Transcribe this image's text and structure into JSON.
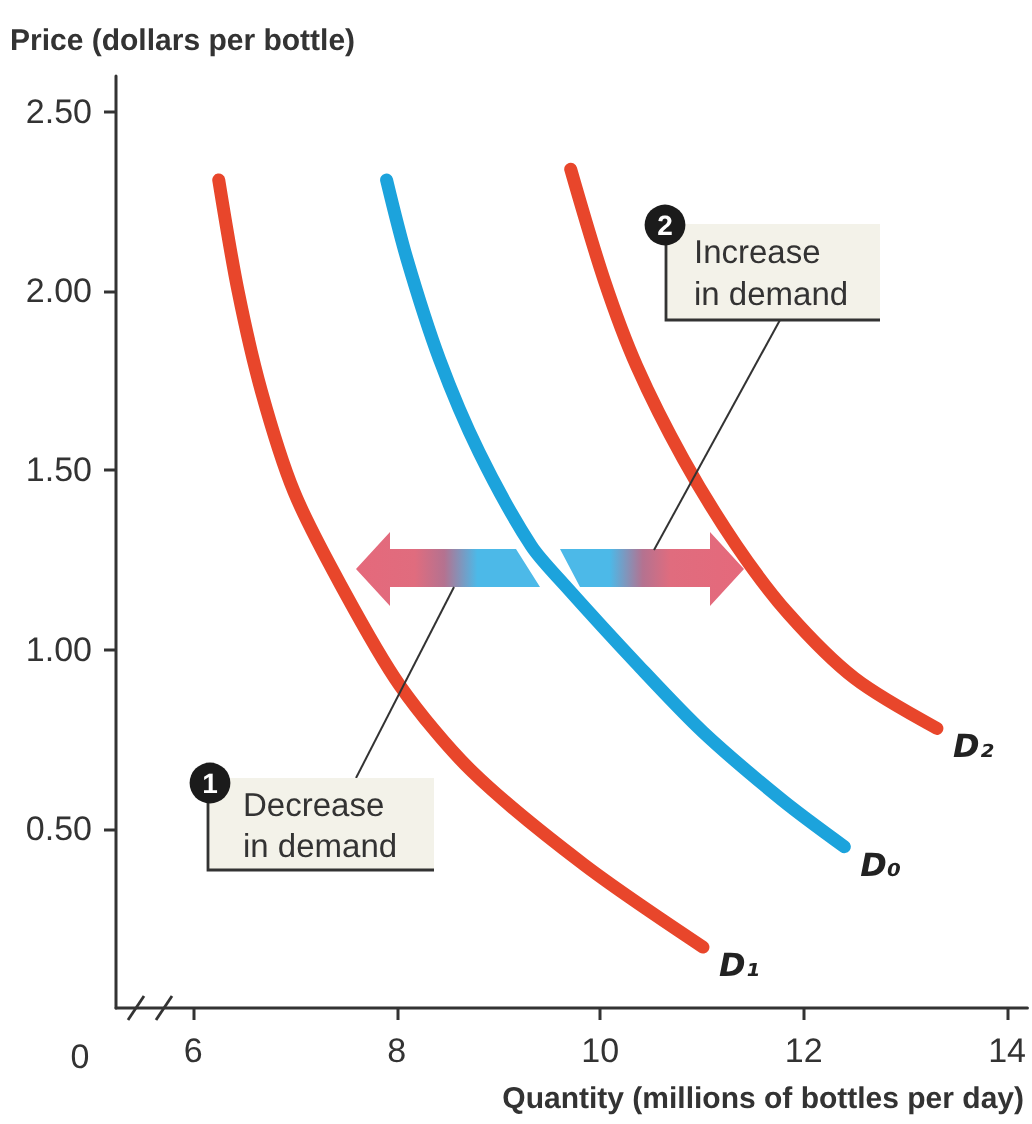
{
  "chart_data": {
    "type": "line",
    "xlabel": "Quantity (millions of bottles per day)",
    "ylabel": "Price (dollars per bottle)",
    "xlim": [
      5.24,
      14.2
    ],
    "xticks": [
      6,
      8,
      10,
      12,
      14
    ],
    "ylim": [
      0,
      2.6
    ],
    "yticks": [
      {
        "value": 0.5,
        "label": "0.50"
      },
      {
        "value": 1,
        "label": "1.00"
      },
      {
        "value": 1.5,
        "label": "1.50"
      },
      {
        "value": 2,
        "label": "2.00"
      },
      {
        "value": 2.5,
        "label": "2.50"
      }
    ],
    "grid": false,
    "legend": false,
    "series": [
      {
        "name": "D₁",
        "color": "#e8462b",
        "x": [
          6.25,
          6.44,
          6.67,
          6.99,
          7.45,
          8.03,
          8.74,
          9.84,
          11.01
        ],
        "values": [
          2.31,
          2.0,
          1.72,
          1.44,
          1.18,
          0.9,
          0.66,
          0.4,
          0.17
        ]
      },
      {
        "name": "D₀",
        "color": "#1ca3dc",
        "x": [
          7.9,
          8.1,
          8.42,
          8.81,
          9.32,
          9.65,
          10.36,
          11.01,
          11.79,
          12.4
        ],
        "values": [
          2.31,
          2.09,
          1.81,
          1.55,
          1.29,
          1.18,
          0.96,
          0.77,
          0.58,
          0.45
        ]
      },
      {
        "name": "D₂",
        "color": "#e8462b",
        "x": [
          9.71,
          10.04,
          10.36,
          10.82,
          11.34,
          11.85,
          12.5,
          13.31
        ],
        "values": [
          2.34,
          2.03,
          1.79,
          1.53,
          1.29,
          1.1,
          0.92,
          0.78
        ]
      }
    ],
    "annotations": [
      "1",
      "Decrease in demand",
      "2",
      "Increase in demand",
      "0"
    ]
  }
}
